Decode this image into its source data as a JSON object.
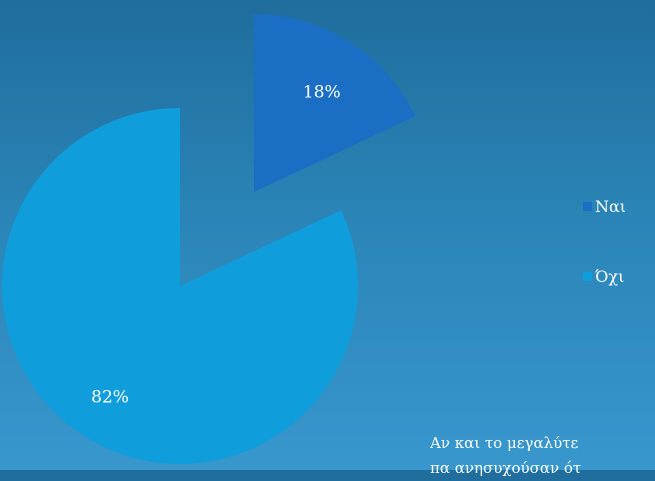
{
  "chart_data": {
    "type": "pie",
    "categories": [
      "Ναι",
      "Όχι"
    ],
    "values": [
      18,
      82
    ],
    "data_labels": [
      "18%",
      "82%"
    ],
    "colors": [
      "#1a6fc4",
      "#109ddc"
    ],
    "exploded": true,
    "legend_position": "right"
  },
  "legend": {
    "items": [
      {
        "label": "Ναι",
        "color": "#1a6fc4"
      },
      {
        "label": "Όχι",
        "color": "#109ddc"
      }
    ]
  },
  "caption": {
    "line1": "Αν και το μεγαλύτε",
    "line2": "πα ανησυχούσαν ότ"
  }
}
